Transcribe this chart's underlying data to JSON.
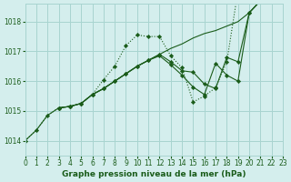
{
  "title": "Graphe pression niveau de la mer (hPa)",
  "bg_color": "#d4eeed",
  "grid_color": "#a8d4d0",
  "line_color": "#1a5c1a",
  "xlim": [
    0,
    23
  ],
  "ylim": [
    1013.5,
    1018.6
  ],
  "yticks": [
    1014,
    1015,
    1016,
    1017,
    1018
  ],
  "xticks": [
    0,
    1,
    2,
    3,
    4,
    5,
    6,
    7,
    8,
    9,
    10,
    11,
    12,
    13,
    14,
    15,
    16,
    17,
    18,
    19,
    20,
    21,
    22,
    23
  ],
  "series_dotted": {
    "x": [
      0,
      1,
      2,
      3,
      4,
      5,
      6,
      7,
      8,
      9,
      10,
      11,
      12,
      13,
      14,
      15,
      16,
      17,
      18,
      19,
      20,
      21,
      22
    ],
    "y": [
      1014.0,
      1014.35,
      1014.85,
      1015.1,
      1015.15,
      1015.25,
      1015.55,
      1016.05,
      1016.5,
      1017.2,
      1017.55,
      1017.5,
      1017.5,
      1016.85,
      1016.45,
      1015.3,
      1015.5,
      1015.78,
      1016.65,
      1019.05,
      1019.1,
      1019.15,
      1019.15
    ]
  },
  "series_straight": {
    "x": [
      0,
      1,
      2,
      3,
      4,
      5,
      6,
      7,
      8,
      9,
      10,
      11,
      12,
      13,
      14,
      15,
      16,
      17,
      18,
      19,
      20,
      21,
      22,
      23
    ],
    "y": [
      1014.0,
      1014.35,
      1014.85,
      1015.1,
      1015.15,
      1015.25,
      1015.55,
      1015.75,
      1016.0,
      1016.25,
      1016.5,
      1016.7,
      1016.9,
      1017.1,
      1017.25,
      1017.45,
      1017.6,
      1017.7,
      1017.85,
      1018.0,
      1018.3,
      1018.7,
      1019.05,
      1019.15
    ]
  },
  "series_v1": {
    "x": [
      3,
      4,
      5,
      6,
      7,
      8,
      9,
      10,
      11,
      12,
      13,
      14,
      15,
      16,
      17,
      18,
      19,
      20,
      21,
      22
    ],
    "y": [
      1015.1,
      1015.15,
      1015.25,
      1015.55,
      1015.75,
      1016.0,
      1016.25,
      1016.5,
      1016.7,
      1016.85,
      1016.55,
      1016.2,
      1015.8,
      1015.55,
      1016.6,
      1016.2,
      1016.0,
      1018.3,
      1018.7,
      1019.05
    ]
  },
  "series_v2": {
    "x": [
      3,
      4,
      5,
      6,
      7,
      8,
      9,
      10,
      11,
      12,
      13,
      14,
      15,
      16,
      17,
      18,
      19,
      20,
      21,
      22
    ],
    "y": [
      1015.1,
      1015.15,
      1015.25,
      1015.55,
      1015.75,
      1016.0,
      1016.25,
      1016.5,
      1016.7,
      1016.9,
      1016.65,
      1016.35,
      1016.3,
      1015.9,
      1015.75,
      1016.8,
      1016.65,
      1018.3,
      1018.7,
      1019.05
    ]
  }
}
